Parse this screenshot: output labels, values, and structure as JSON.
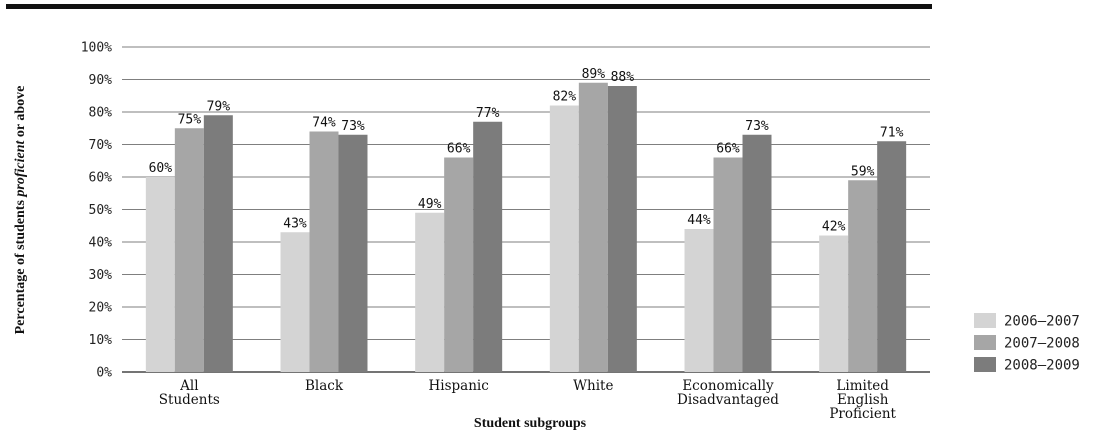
{
  "chart_data": {
    "type": "bar",
    "title": "",
    "xlabel": "Student subgroups",
    "ylabel_parts": [
      "Percentage of students ",
      "proficient",
      " or above"
    ],
    "ylim": [
      0,
      100
    ],
    "yticks": [
      "0%",
      "10%",
      "20%",
      "30%",
      "40%",
      "50%",
      "60%",
      "70%",
      "80%",
      "90%",
      "100%"
    ],
    "grid": true,
    "legend_position": "bottom-right",
    "categories": [
      [
        "All",
        "Students"
      ],
      [
        "Black"
      ],
      [
        "Hispanic"
      ],
      [
        "White"
      ],
      [
        "Economically",
        "Disadvantaged"
      ],
      [
        "Limited",
        "English",
        "Proficient"
      ]
    ],
    "series": [
      {
        "name": "2006–2007",
        "color": "#d4d4d4",
        "values": [
          60,
          43,
          49,
          82,
          44,
          42
        ],
        "labels": [
          "60%",
          "43%",
          "49%",
          "82%",
          "44%",
          "42%"
        ]
      },
      {
        "name": "2007–2008",
        "color": "#a6a6a6",
        "values": [
          75,
          74,
          66,
          89,
          66,
          59
        ],
        "labels": [
          "75%",
          "74%",
          "66%",
          "89%",
          "66%",
          "59%"
        ]
      },
      {
        "name": "2008–2009",
        "color": "#7c7c7c",
        "values": [
          79,
          73,
          77,
          88,
          73,
          71
        ],
        "labels": [
          "79%",
          "73%",
          "77%",
          "88%",
          "73%",
          "71%"
        ]
      }
    ]
  }
}
